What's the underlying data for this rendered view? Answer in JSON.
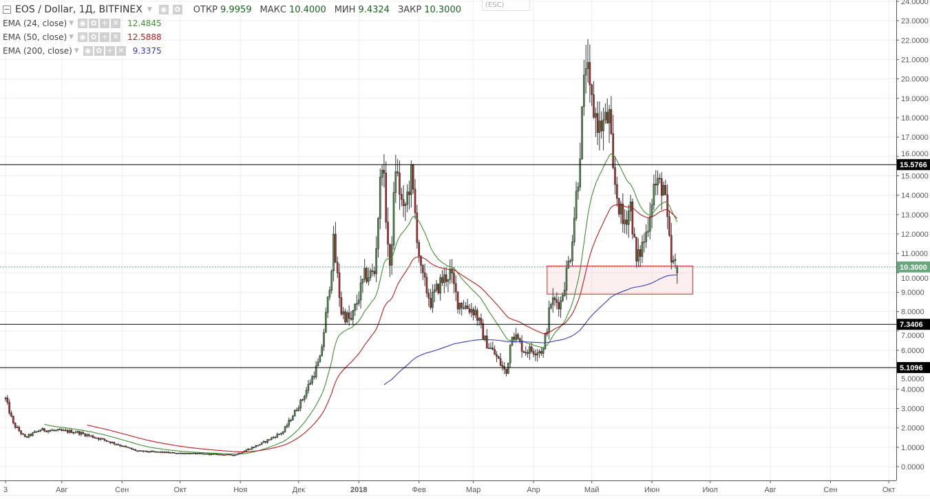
{
  "header": {
    "symbol": "EOS / Dollar, 1Д, BITFINEX",
    "ohlc": [
      {
        "label": "ОТКР",
        "value": "9.9959"
      },
      {
        "label": "МАКС",
        "value": "10.4000"
      },
      {
        "label": "МИН",
        "value": "9.4324"
      },
      {
        "label": "ЗАКР",
        "value": "10.3000"
      }
    ],
    "tooltip": "(ESC)"
  },
  "indicators": [
    {
      "label": "EMA (24, close)",
      "value": "12.4845",
      "color": "#3f8f2f",
      "period": 24
    },
    {
      "label": "EMA (50, close)",
      "value": "12.5888",
      "color": "#b71c1c",
      "period": 50
    },
    {
      "label": "EMA (200, close)",
      "value": "9.3375",
      "color": "#3838b8",
      "period": 200
    }
  ],
  "chart_data": {
    "type": "candlestick",
    "start_date": "2017-07-01",
    "close_keypoints": [
      [
        2,
        3.5
      ],
      [
        6,
        2.2
      ],
      [
        12,
        1.5
      ],
      [
        20,
        1.9
      ],
      [
        38,
        1.8
      ],
      [
        52,
        1.4
      ],
      [
        70,
        0.8
      ],
      [
        91,
        0.7
      ],
      [
        120,
        0.6
      ],
      [
        134,
        1.2
      ],
      [
        145,
        1.8
      ],
      [
        155,
        3.5
      ],
      [
        164,
        5.5
      ],
      [
        168,
        8.5
      ],
      [
        171,
        11.5
      ],
      [
        175,
        8
      ],
      [
        180,
        7.5
      ],
      [
        187,
        9.8
      ],
      [
        192,
        10
      ],
      [
        196,
        16
      ],
      [
        200,
        10
      ],
      [
        203,
        15.5
      ],
      [
        207,
        13
      ],
      [
        211,
        15
      ],
      [
        216,
        10
      ],
      [
        221,
        8.5
      ],
      [
        226,
        9.5
      ],
      [
        231,
        10
      ],
      [
        235,
        8.5
      ],
      [
        244,
        8
      ],
      [
        249,
        6.5
      ],
      [
        254,
        5.8
      ],
      [
        260,
        4.8
      ],
      [
        263,
        7
      ],
      [
        269,
        6
      ],
      [
        279,
        6
      ],
      [
        283,
        8.5
      ],
      [
        288,
        8.5
      ],
      [
        293,
        11
      ],
      [
        297,
        15
      ],
      [
        301,
        21
      ],
      [
        303,
        19
      ],
      [
        308,
        17.5
      ],
      [
        313,
        18
      ],
      [
        315,
        15
      ],
      [
        320,
        12.5
      ],
      [
        324,
        13.5
      ],
      [
        327,
        10.5
      ],
      [
        332,
        12
      ],
      [
        336,
        14.5
      ],
      [
        341,
        14.5
      ],
      [
        345,
        10.5
      ],
      [
        348,
        10.3
      ]
    ],
    "last": {
      "open": 9.9959,
      "high": 10.4,
      "low": 9.4324,
      "close": 10.3
    },
    "yticks": [
      "0.0000",
      "1.0000",
      "2.0000",
      "3.0000",
      "4.0000",
      "5.0000",
      "6.0000",
      "7.0000",
      "8.0000",
      "9.0000",
      "10.0000",
      "11.0000",
      "12.0000",
      "13.0000",
      "14.0000",
      "15.0000",
      "16.0000",
      "17.0000",
      "18.0000",
      "19.0000",
      "20.0000",
      "21.0000",
      "22.0000",
      "23.0000",
      "24.0000"
    ],
    "ylim": [
      0,
      24
    ],
    "xticks": [
      {
        "day": 2,
        "label": "3"
      },
      {
        "day": 31,
        "label": "Авг"
      },
      {
        "day": 62,
        "label": "Сен"
      },
      {
        "day": 92,
        "label": "Окт"
      },
      {
        "day": 123,
        "label": "Ноя"
      },
      {
        "day": 153,
        "label": "Дек"
      },
      {
        "day": 184,
        "label": "2018"
      },
      {
        "day": 215,
        "label": "Фев"
      },
      {
        "day": 243,
        "label": "Мар"
      },
      {
        "day": 274,
        "label": "Апр"
      },
      {
        "day": 304,
        "label": "Май"
      },
      {
        "day": 335,
        "label": "Июн"
      },
      {
        "day": 365,
        "label": "Июл"
      },
      {
        "day": 396,
        "label": "Авг"
      },
      {
        "day": 427,
        "label": "Сен"
      },
      {
        "day": 457,
        "label": "Окт"
      }
    ],
    "hlines": [
      {
        "value": 15.5766,
        "label": "15.5766"
      },
      {
        "value": 7.3406,
        "label": "7.3406"
      },
      {
        "value": 5.1096,
        "label": "5.1096"
      }
    ],
    "last_price": {
      "value": 10.3,
      "label": "10.3000",
      "color": "#6aa77d"
    },
    "zone": {
      "from_day": 281,
      "to_day": 356,
      "low": 8.9,
      "high": 10.35
    },
    "colors": {
      "up": "#4f9a4f",
      "down": "#c62828",
      "wick": "#333333",
      "grid": "#ededed"
    }
  }
}
